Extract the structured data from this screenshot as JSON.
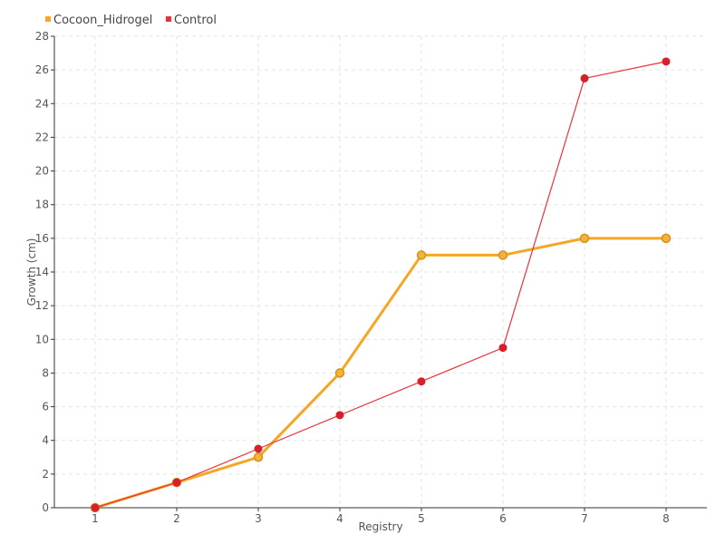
{
  "chart_data": {
    "type": "line",
    "title": "",
    "xlabel": "Registry",
    "ylabel": "Growth (cm)",
    "categories": [
      "1",
      "2",
      "3",
      "4",
      "5",
      "6",
      "7",
      "8"
    ],
    "x": [
      1,
      2,
      3,
      4,
      5,
      6,
      7,
      8
    ],
    "xlim": [
      0.5,
      8.5
    ],
    "ylim": [
      0,
      28
    ],
    "yticks": [
      0,
      2,
      4,
      6,
      8,
      10,
      12,
      14,
      16,
      18,
      20,
      22,
      24,
      26,
      28
    ],
    "grid": true,
    "legend_position": "top-left",
    "series": [
      {
        "name": "Cocoon_Hidrogel",
        "color": "#f5a623",
        "marker_fill": "#f0b43c",
        "marker_stroke": "#d9901a",
        "values": [
          0,
          1.5,
          3,
          8,
          15,
          15,
          16,
          16
        ]
      },
      {
        "name": "Control",
        "color": "#e8333a",
        "marker_fill": "#d8202a",
        "marker_stroke": "#d8202a",
        "values": [
          0,
          1.5,
          3.5,
          5.5,
          7.5,
          9.5,
          25.5,
          26.5
        ]
      }
    ]
  }
}
